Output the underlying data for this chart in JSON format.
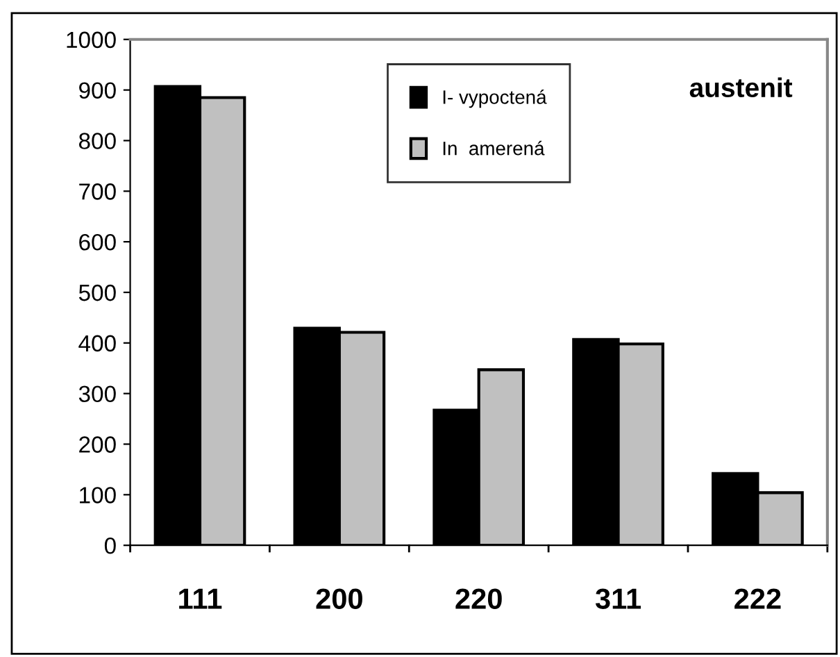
{
  "chart_data": {
    "type": "bar",
    "categories": [
      "111",
      "200",
      "220",
      "311",
      "222"
    ],
    "series": [
      {
        "name": "I- vypoctená",
        "color": "#000000",
        "values": [
          907,
          429,
          267,
          407,
          142
        ]
      },
      {
        "name": "In  amerená",
        "color": "#c0c0c0",
        "values": [
          885,
          421,
          347,
          398,
          104
        ]
      }
    ],
    "annotations": [
      "austenit"
    ],
    "ylim": [
      0,
      1000
    ],
    "yticks": [
      0,
      100,
      200,
      300,
      400,
      500,
      600,
      700,
      800,
      900,
      {
        "value": 1000,
        "label": "1000"
      }
    ],
    "grid": false,
    "legend": "top"
  }
}
